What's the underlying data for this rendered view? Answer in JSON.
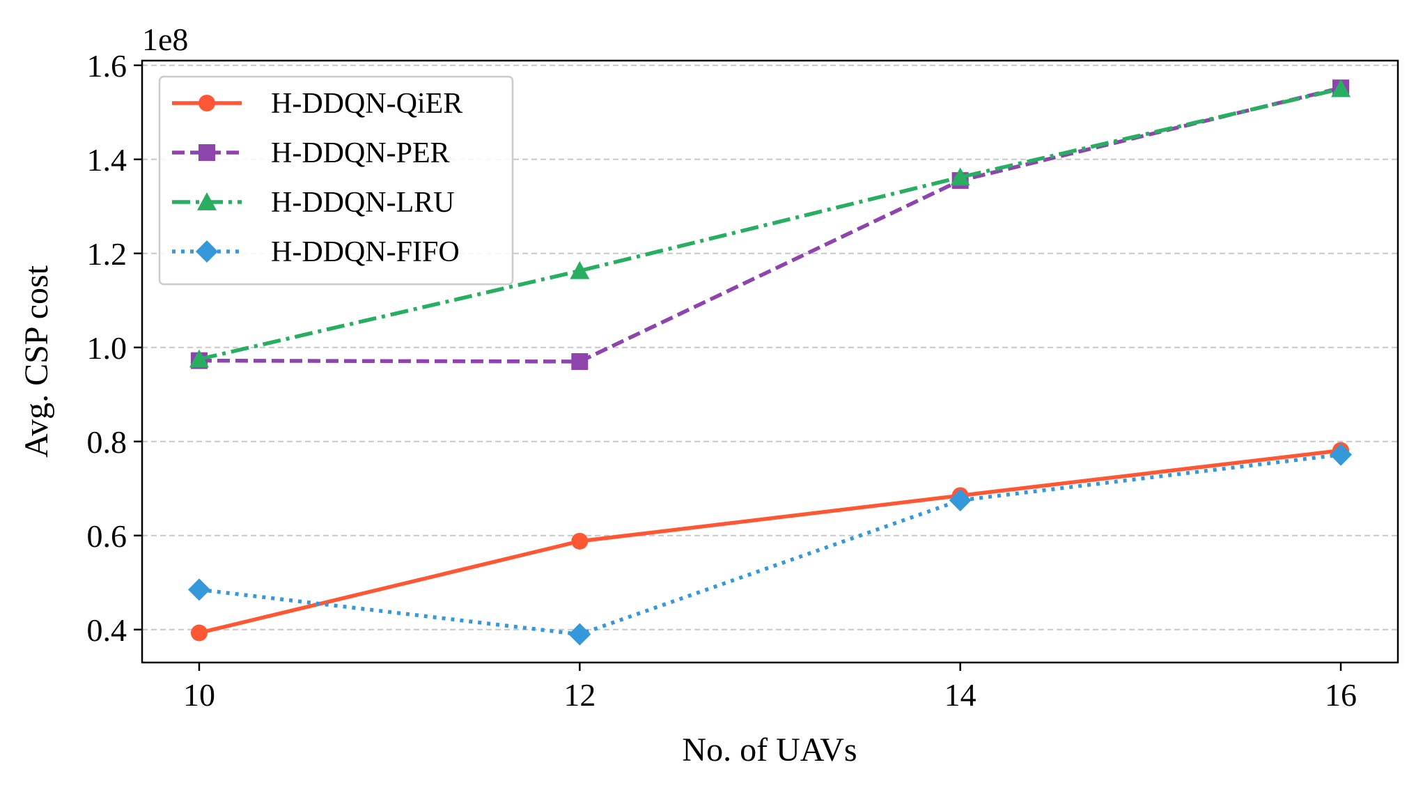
{
  "chart_data": {
    "type": "line",
    "title": "",
    "xlabel": "No. of UAVs",
    "ylabel": "Avg. CSP cost",
    "y_offset_label": "1e8",
    "x": [
      10,
      12,
      14,
      16
    ],
    "xticks": [
      "10",
      "12",
      "14",
      "16"
    ],
    "xlim": [
      9.7,
      16.3
    ],
    "yticks": [
      "0.4",
      "0.6",
      "0.8",
      "1.0",
      "1.2",
      "1.4",
      "1.6"
    ],
    "ytick_values": [
      0.4,
      0.6,
      0.8,
      1.0,
      1.2,
      1.4,
      1.6
    ],
    "ylim": [
      0.33,
      1.61
    ],
    "grid": "horizontal-dashed",
    "legend_position": "top-left",
    "series": [
      {
        "name": "H-DDQN-QiER",
        "values": [
          0.393,
          0.588,
          0.685,
          0.781
        ],
        "color": "#FF5733",
        "dash": "solid",
        "marker": "circle"
      },
      {
        "name": "H-DDQN-PER",
        "values": [
          0.972,
          0.97,
          1.355,
          1.552
        ],
        "color": "#8E44AD",
        "dash": "dashed",
        "marker": "square"
      },
      {
        "name": "H-DDQN-LRU",
        "values": [
          0.975,
          1.163,
          1.362,
          1.55
        ],
        "color": "#27AE60",
        "dash": "dashdot",
        "marker": "triangle"
      },
      {
        "name": "H-DDQN-FIFO",
        "values": [
          0.485,
          0.39,
          0.675,
          0.772
        ],
        "color": "#3498DB",
        "dash": "dotted",
        "marker": "diamond"
      }
    ]
  }
}
